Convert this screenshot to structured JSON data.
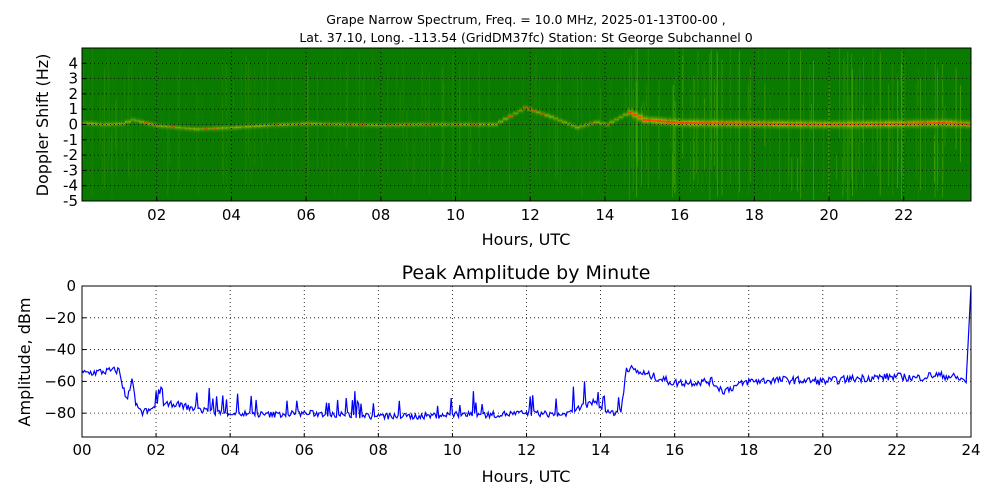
{
  "chart_data": [
    {
      "type": "heatmap",
      "title_line1": "Grape Narrow Spectrum, Freq. = 10.0 MHz, 2025-01-13T00-00 ,",
      "title_line2": "Lat.  37.10, Long. -113.54 (GridDM37fc) Station: St George Subchannel 0",
      "xlabel": "Hours, UTC",
      "ylabel": "Doppler Shift (Hz)",
      "xlim": [
        0,
        23.8
      ],
      "ylim": [
        -5,
        5
      ],
      "x_ticks": [
        2,
        4,
        6,
        8,
        10,
        12,
        14,
        16,
        18,
        20,
        22
      ],
      "x_tick_labels": [
        "02",
        "04",
        "06",
        "08",
        "10",
        "12",
        "14",
        "16",
        "18",
        "20",
        "22"
      ],
      "y_ticks": [
        4,
        3,
        2,
        1,
        0,
        -1,
        -2,
        -3,
        -4,
        -5
      ],
      "y_tick_labels": [
        "4",
        "3",
        "2",
        "1",
        "0",
        "-1",
        "-2",
        "-3",
        "-4",
        "-5"
      ],
      "grid": true,
      "colors": {
        "background": "#0b7a00",
        "mid": "#c8d400",
        "peak": "#ff2a00"
      },
      "doppler_trace": [
        [
          0.0,
          0.1
        ],
        [
          0.5,
          0.0
        ],
        [
          1.0,
          0.05
        ],
        [
          1.3,
          0.3
        ],
        [
          2.0,
          -0.1
        ],
        [
          3.0,
          -0.3
        ],
        [
          4.0,
          -0.2
        ],
        [
          5.0,
          -0.05
        ],
        [
          6.0,
          0.05
        ],
        [
          7.0,
          0.0
        ],
        [
          8.0,
          -0.05
        ],
        [
          9.0,
          0.0
        ],
        [
          10.0,
          0.0
        ],
        [
          11.0,
          0.0
        ],
        [
          11.8,
          1.1
        ],
        [
          12.5,
          0.5
        ],
        [
          13.2,
          -0.2
        ],
        [
          13.7,
          0.15
        ],
        [
          14.0,
          0.0
        ],
        [
          14.6,
          0.8
        ],
        [
          15.0,
          0.3
        ],
        [
          16.0,
          0.1
        ],
        [
          18.0,
          0.05
        ],
        [
          20.0,
          0.0
        ],
        [
          22.0,
          0.05
        ],
        [
          23.0,
          0.1
        ],
        [
          23.8,
          0.0
        ]
      ]
    },
    {
      "type": "line",
      "title": "Peak Amplitude by Minute",
      "xlabel": "Hours, UTC",
      "ylabel": "Amplitude, dBm",
      "xlim": [
        0,
        24
      ],
      "ylim": [
        -95,
        0
      ],
      "x_ticks": [
        0,
        2,
        4,
        6,
        8,
        10,
        12,
        14,
        16,
        18,
        20,
        22,
        24
      ],
      "x_tick_labels": [
        "00",
        "02",
        "04",
        "06",
        "08",
        "10",
        "12",
        "14",
        "16",
        "18",
        "20",
        "22",
        "24"
      ],
      "y_ticks": [
        0,
        -20,
        -40,
        -60,
        -80
      ],
      "y_tick_labels": [
        "0",
        "−20",
        "−40",
        "−60",
        "−80"
      ],
      "grid": true,
      "line_color": "#0000ff",
      "series": [
        {
          "x": [
            0.0,
            0.5,
            1.0,
            1.2,
            1.35,
            1.45,
            1.6,
            2.0,
            2.5,
            3.0,
            3.5,
            4.0,
            5.0,
            6.0,
            7.0,
            8.0,
            9.0,
            10.0,
            11.0,
            12.0,
            13.0,
            13.8,
            14.2,
            14.55,
            14.7,
            15.0,
            16.0,
            17.0,
            17.3,
            18.0,
            19.0,
            20.0,
            21.0,
            22.0,
            22.5,
            23.0,
            23.5,
            23.9,
            24.0
          ],
          "y": [
            -55,
            -54,
            -53,
            -72,
            -58,
            -75,
            -80,
            -76,
            -74,
            -77,
            -79,
            -80,
            -81,
            -80,
            -81,
            -82,
            -82,
            -81,
            -81,
            -80,
            -81,
            -73,
            -80,
            -79,
            -51,
            -54,
            -61,
            -60,
            -66,
            -60,
            -59,
            -60,
            -58,
            -57,
            -58,
            -56,
            -57,
            -60,
            0
          ]
        }
      ]
    }
  ]
}
